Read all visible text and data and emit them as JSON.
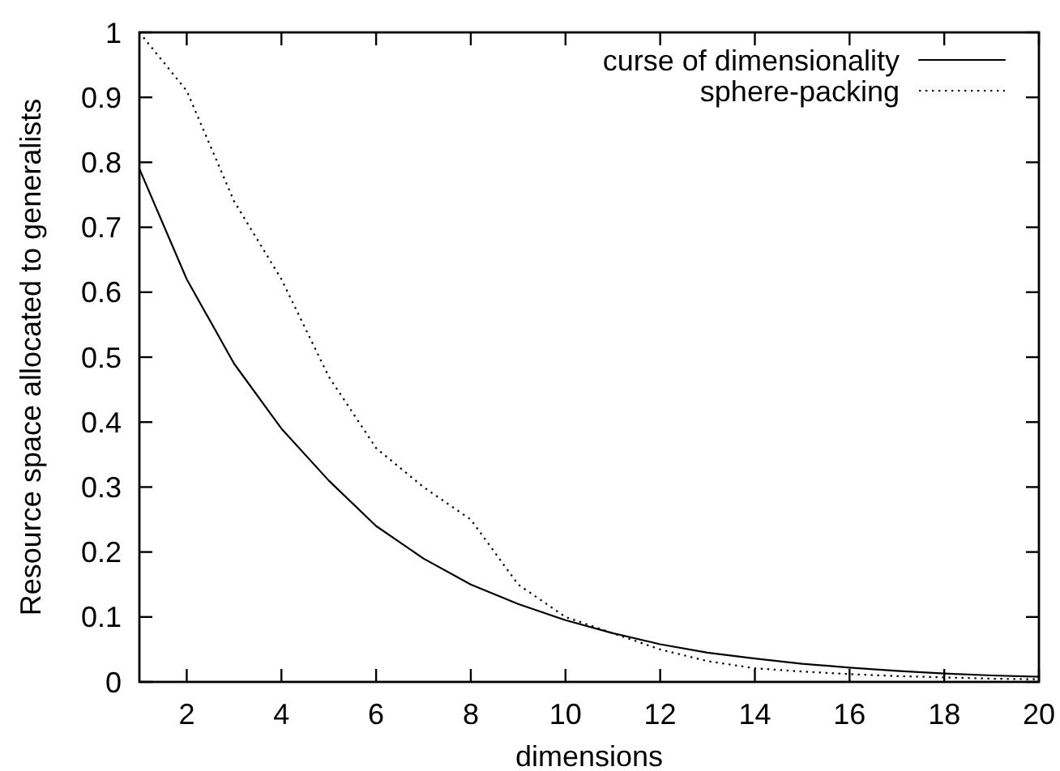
{
  "chart_data": {
    "type": "line",
    "xlabel": "dimensions",
    "ylabel": "Resource space allocated to generalists",
    "x": [
      1,
      2,
      3,
      4,
      5,
      6,
      7,
      8,
      9,
      10,
      11,
      12,
      13,
      14,
      15,
      16,
      17,
      18,
      19,
      20
    ],
    "series": [
      {
        "name": "curse of dimensionality",
        "color": "#000000",
        "line_style": "solid",
        "values": [
          0.79,
          0.62,
          0.49,
          0.39,
          0.31,
          0.24,
          0.19,
          0.15,
          0.12,
          0.095,
          0.075,
          0.058,
          0.045,
          0.036,
          0.028,
          0.022,
          0.017,
          0.013,
          0.01,
          0.008
        ]
      },
      {
        "name": "sphere-packing",
        "color": "#000000",
        "line_style": "dotted",
        "values": [
          1.0,
          0.91,
          0.74,
          0.62,
          0.47,
          0.36,
          0.3,
          0.25,
          0.15,
          0.1,
          0.075,
          0.05,
          0.032,
          0.021,
          0.016,
          0.012,
          0.009,
          0.007,
          0.005,
          0.004
        ]
      }
    ],
    "xlim": [
      1,
      20
    ],
    "ylim": [
      0,
      1
    ],
    "xticks": [
      2,
      4,
      6,
      8,
      10,
      12,
      14,
      16,
      18,
      20
    ],
    "yticks": [
      0,
      0.1,
      0.2,
      0.3,
      0.4,
      0.5,
      0.6,
      0.7,
      0.8,
      0.9,
      1
    ],
    "legend": "top right"
  }
}
